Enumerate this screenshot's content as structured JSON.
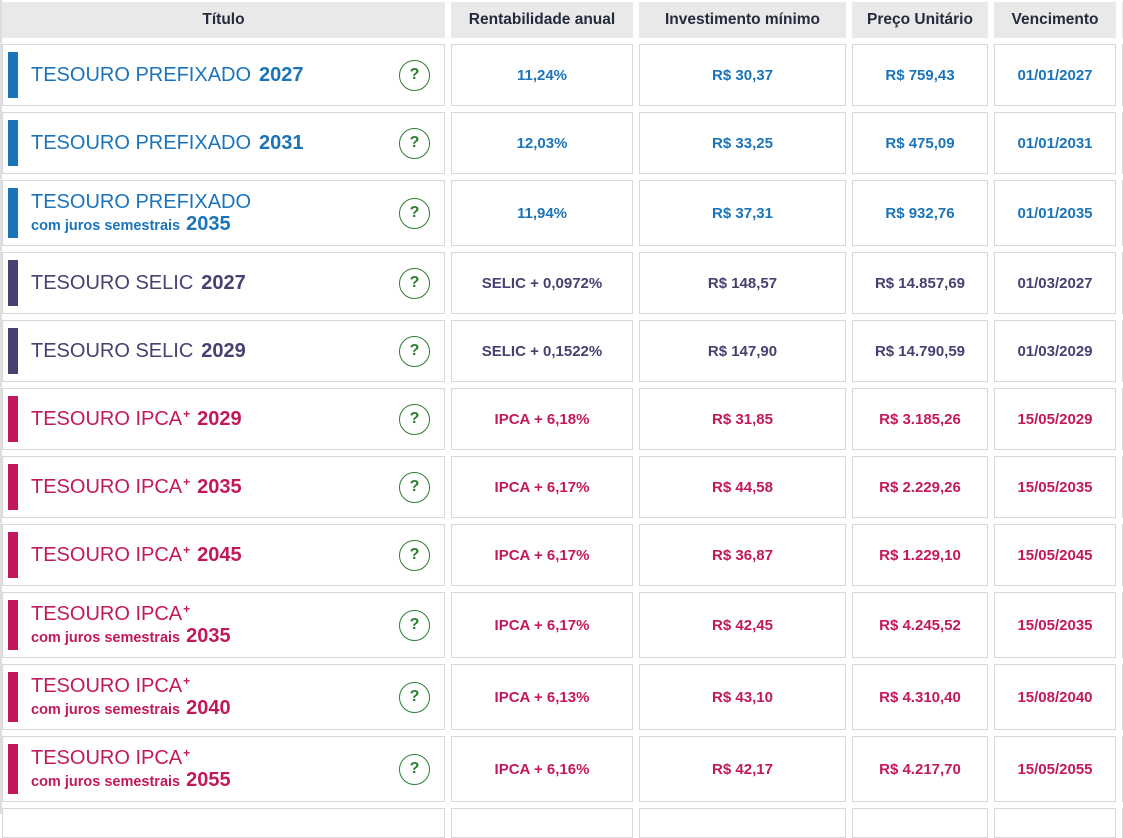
{
  "help_icon": "?",
  "colors": {
    "blue": "#1b74b8",
    "purple": "#474070",
    "magenta": "#c2195c",
    "green": "#2e7d32",
    "header_text": "#252b3d",
    "header_bg": "#e9e9e9",
    "cell_border": "#d8d8d8"
  },
  "header": {
    "columns": [
      "Título",
      "Rentabilidade anual",
      "Investimento mínimo",
      "Preço Unitário",
      "Vencimento"
    ]
  },
  "rows": [
    {
      "title": "TESOURO PREFIXADO",
      "title_sup": "",
      "subtitle": "",
      "year": "2027",
      "theme": "blue",
      "rentabilidade": "11,24%",
      "investimento_minimo": "R$ 30,37",
      "preco_unitario": "R$ 759,43",
      "vencimento": "01/01/2027"
    },
    {
      "title": "TESOURO PREFIXADO",
      "title_sup": "",
      "subtitle": "",
      "year": "2031",
      "theme": "blue",
      "rentabilidade": "12,03%",
      "investimento_minimo": "R$ 33,25",
      "preco_unitario": "R$ 475,09",
      "vencimento": "01/01/2031"
    },
    {
      "title": "TESOURO PREFIXADO",
      "title_sup": "",
      "subtitle": "com juros semestrais",
      "year": "2035",
      "theme": "blue",
      "rentabilidade": "11,94%",
      "investimento_minimo": "R$ 37,31",
      "preco_unitario": "R$ 932,76",
      "vencimento": "01/01/2035"
    },
    {
      "title": "TESOURO SELIC",
      "title_sup": "",
      "subtitle": "",
      "year": "2027",
      "theme": "purple",
      "rentabilidade": "SELIC + 0,0972%",
      "investimento_minimo": "R$ 148,57",
      "preco_unitario": "R$ 14.857,69",
      "vencimento": "01/03/2027"
    },
    {
      "title": "TESOURO SELIC",
      "title_sup": "",
      "subtitle": "",
      "year": "2029",
      "theme": "purple",
      "rentabilidade": "SELIC + 0,1522%",
      "investimento_minimo": "R$ 147,90",
      "preco_unitario": "R$ 14.790,59",
      "vencimento": "01/03/2029"
    },
    {
      "title": "TESOURO IPCA",
      "title_sup": "+",
      "subtitle": "",
      "year": "2029",
      "theme": "magenta",
      "rentabilidade": "IPCA + 6,18%",
      "investimento_minimo": "R$ 31,85",
      "preco_unitario": "R$ 3.185,26",
      "vencimento": "15/05/2029"
    },
    {
      "title": "TESOURO IPCA",
      "title_sup": "+",
      "subtitle": "",
      "year": "2035",
      "theme": "magenta",
      "rentabilidade": "IPCA + 6,17%",
      "investimento_minimo": "R$ 44,58",
      "preco_unitario": "R$ 2.229,26",
      "vencimento": "15/05/2035"
    },
    {
      "title": "TESOURO IPCA",
      "title_sup": "+",
      "subtitle": "",
      "year": "2045",
      "theme": "magenta",
      "rentabilidade": "IPCA + 6,17%",
      "investimento_minimo": "R$ 36,87",
      "preco_unitario": "R$ 1.229,10",
      "vencimento": "15/05/2045"
    },
    {
      "title": "TESOURO IPCA",
      "title_sup": "+",
      "subtitle": "com juros semestrais",
      "year": "2035",
      "theme": "magenta",
      "rentabilidade": "IPCA + 6,17%",
      "investimento_minimo": "R$ 42,45",
      "preco_unitario": "R$ 4.245,52",
      "vencimento": "15/05/2035"
    },
    {
      "title": "TESOURO IPCA",
      "title_sup": "+",
      "subtitle": "com juros semestrais",
      "year": "2040",
      "theme": "magenta",
      "rentabilidade": "IPCA + 6,13%",
      "investimento_minimo": "R$ 43,10",
      "preco_unitario": "R$ 4.310,40",
      "vencimento": "15/08/2040"
    },
    {
      "title": "TESOURO IPCA",
      "title_sup": "+",
      "subtitle": "com juros semestrais",
      "year": "2055",
      "theme": "magenta",
      "rentabilidade": "IPCA + 6,16%",
      "investimento_minimo": "R$ 42,17",
      "preco_unitario": "R$ 4.217,70",
      "vencimento": "15/05/2055"
    }
  ]
}
